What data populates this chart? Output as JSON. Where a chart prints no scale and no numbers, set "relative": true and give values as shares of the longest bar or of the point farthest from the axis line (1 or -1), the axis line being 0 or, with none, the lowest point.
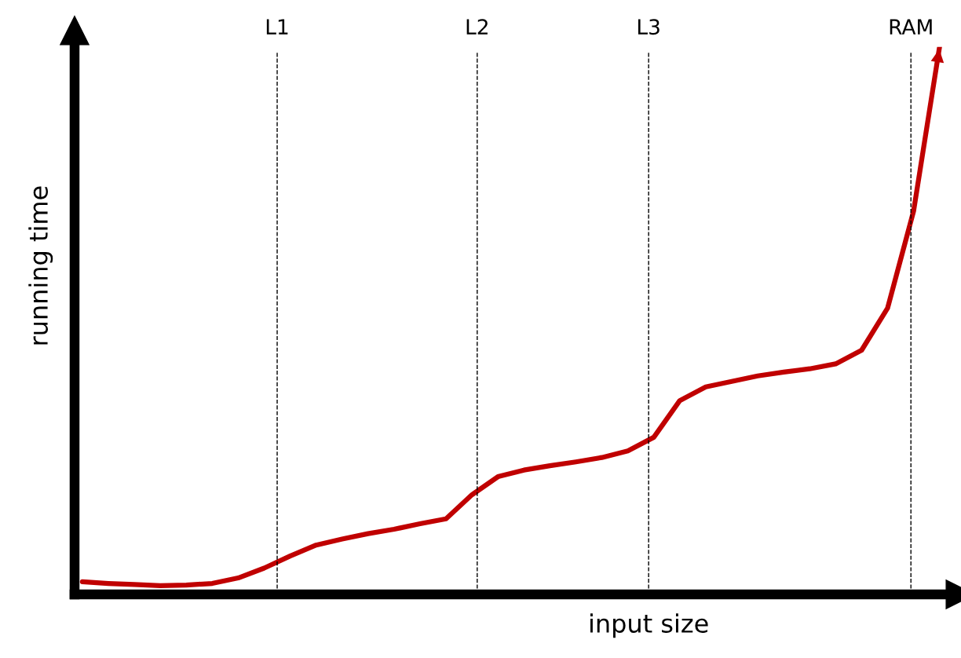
{
  "chart_data": {
    "type": "line",
    "relative": true,
    "xlabel": "input size",
    "ylabel": "running time",
    "marker": "none",
    "line_style": "solid",
    "categories": [
      null,
      null,
      null,
      null,
      null,
      null,
      null,
      null,
      null,
      null,
      null,
      null,
      null,
      null,
      null,
      null,
      null,
      null,
      null,
      null,
      null,
      null,
      null,
      null,
      null,
      null,
      null,
      null,
      null,
      null,
      null,
      null,
      null,
      null
    ],
    "series": [
      {
        "color": "#c00000",
        "values": [
          0.023,
          0.02,
          0.018,
          0.016,
          0.017,
          0.02,
          0.03,
          0.048,
          0.07,
          0.09,
          0.101,
          0.111,
          0.119,
          0.129,
          0.138,
          0.182,
          0.215,
          0.227,
          0.235,
          0.242,
          0.25,
          0.262,
          0.287,
          0.354,
          0.379,
          0.389,
          0.399,
          0.406,
          0.412,
          0.421,
          0.446,
          0.523,
          0.7,
          1.0
        ]
      }
    ],
    "annotations": [
      "L1",
      "L2",
      "L3",
      "RAM"
    ]
  }
}
